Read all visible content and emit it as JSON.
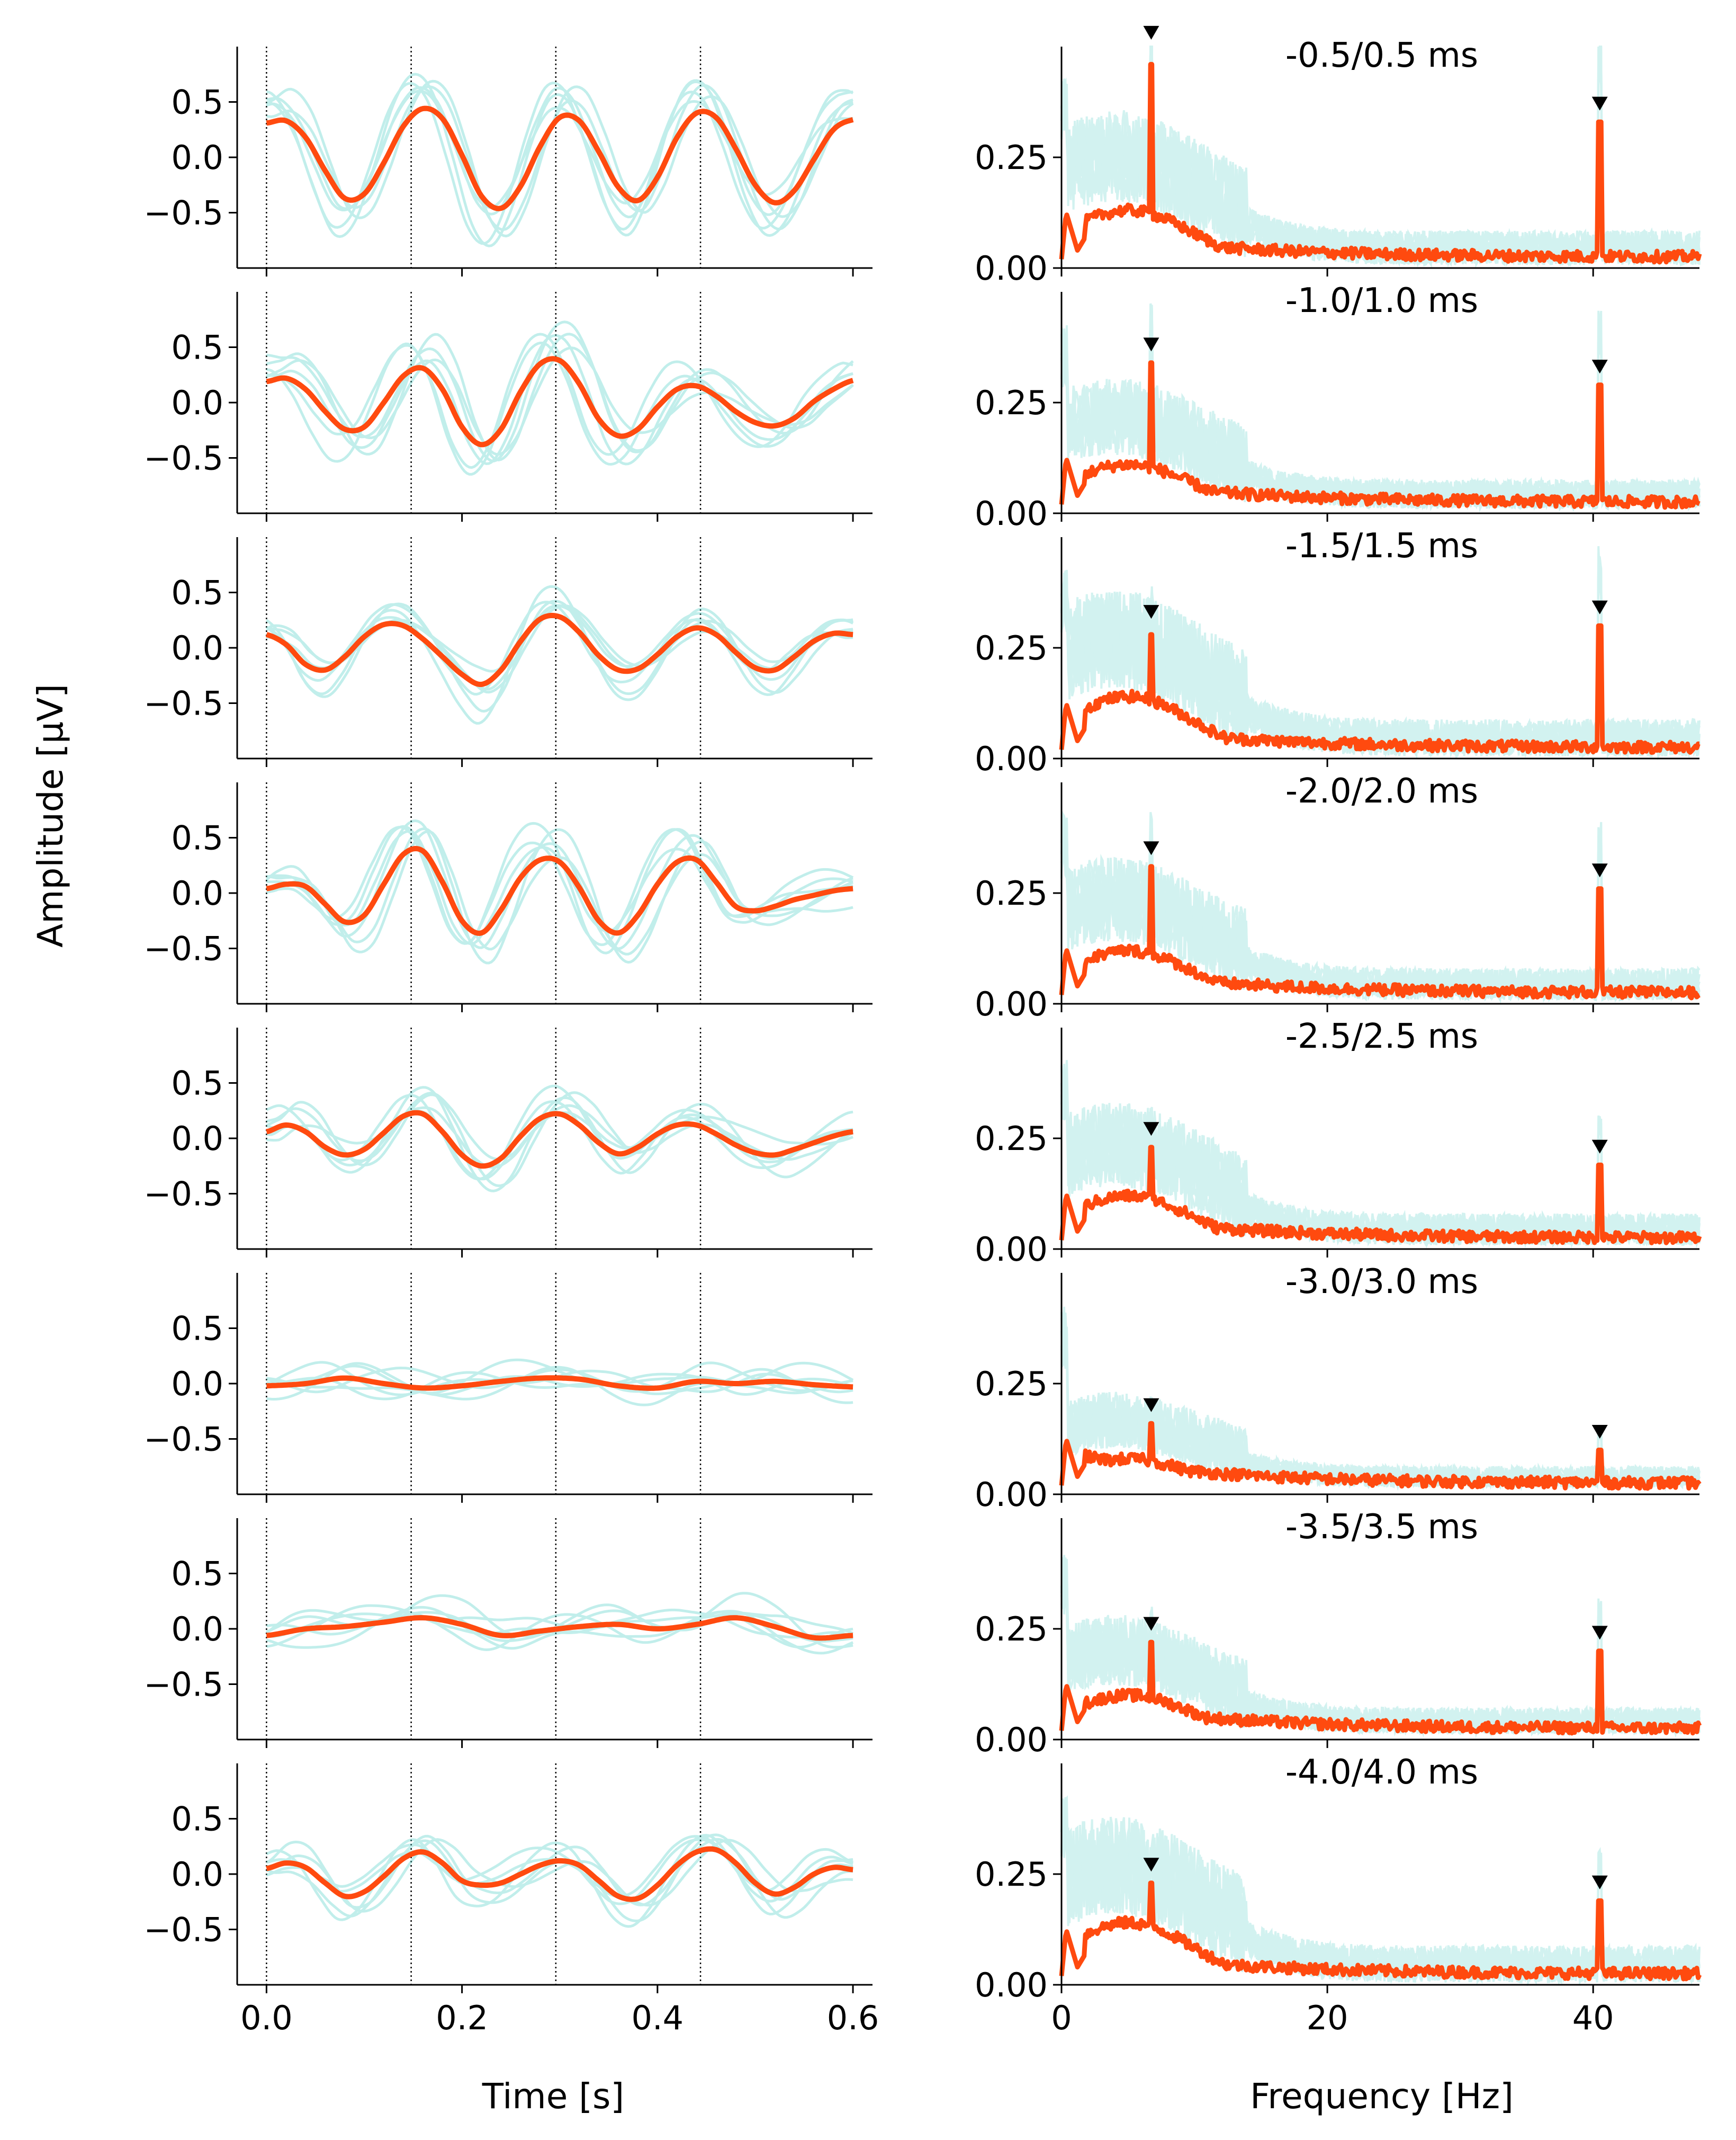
{
  "figure": {
    "left_ylabel": "Amplitude [μV]",
    "left_xlabel": "Time [s]",
    "right_xlabel": "Frequency [Hz]"
  },
  "colors": {
    "average_line": "#ff4a0f",
    "trial_lines": "#5fd3cc",
    "marker": "#000000",
    "stim_lines": "#000000",
    "axes": "#000000"
  },
  "chart_data": [
    {
      "type": "line",
      "panel": "time-domain waveforms",
      "xlabel": "Time [s]",
      "ylabel": "Amplitude [μV]",
      "xlim": [
        -0.03,
        0.62
      ],
      "ylim": [
        -1.0,
        1.0
      ],
      "x_ticks": [
        "0.0",
        "0.2",
        "0.4",
        "0.6"
      ],
      "x_tick_values": [
        0.0,
        0.2,
        0.4,
        0.6
      ],
      "y_ticks": [
        "0.5",
        "0.0",
        "−0.5"
      ],
      "y_tick_values": [
        0.5,
        0.0,
        -0.5
      ],
      "stimulus_onsets": [
        0.0,
        0.148,
        0.296,
        0.444
      ],
      "stimulus_line_style": "dotted",
      "rows": [
        {
          "offset_avg": 0.06,
          "offsets_trials": [
            0.05,
            -0.02,
            0.12,
            0.08,
            -0.06,
            0.03
          ],
          "peak_amp": 0.45,
          "x": [
            0.0,
            0.02,
            0.04,
            0.06,
            0.08,
            0.1,
            0.12,
            0.14,
            0.16,
            0.18,
            0.2,
            0.22,
            0.24,
            0.26,
            0.28,
            0.3,
            0.32,
            0.34,
            0.36,
            0.38,
            0.4,
            0.42,
            0.44,
            0.46,
            0.48,
            0.5,
            0.52,
            0.54,
            0.56,
            0.58,
            0.6
          ],
          "y": [
            0.31,
            0.33,
            0.18,
            -0.12,
            -0.37,
            -0.33,
            -0.05,
            0.28,
            0.44,
            0.35,
            0.02,
            -0.35,
            -0.46,
            -0.26,
            0.1,
            0.36,
            0.33,
            0.05,
            -0.27,
            -0.39,
            -0.18,
            0.18,
            0.4,
            0.36,
            0.08,
            -0.25,
            -0.41,
            -0.3,
            -0.02,
            0.25,
            0.34
          ]
        },
        {
          "offset_avg": 0.0,
          "offsets_trials": [
            0.02,
            0.1,
            -0.05,
            0.07,
            -0.09,
            0.04
          ],
          "peak_amp": 0.4,
          "x": [
            0.0,
            0.02,
            0.04,
            0.06,
            0.08,
            0.1,
            0.12,
            0.14,
            0.16,
            0.18,
            0.2,
            0.22,
            0.24,
            0.26,
            0.28,
            0.3,
            0.32,
            0.34,
            0.36,
            0.38,
            0.4,
            0.42,
            0.44,
            0.46,
            0.48,
            0.5,
            0.52,
            0.54,
            0.56,
            0.58,
            0.6
          ],
          "y": [
            0.19,
            0.22,
            0.12,
            -0.08,
            -0.24,
            -0.22,
            0.0,
            0.24,
            0.31,
            0.12,
            -0.22,
            -0.38,
            -0.24,
            0.1,
            0.35,
            0.38,
            0.17,
            -0.15,
            -0.3,
            -0.24,
            -0.04,
            0.12,
            0.15,
            0.06,
            -0.08,
            -0.18,
            -0.21,
            -0.14,
            0.01,
            0.12,
            0.2
          ]
        },
        {
          "offset_avg": 0.0,
          "offsets_trials": [
            0.04,
            -0.08,
            0.11,
            0.02,
            -0.05,
            0.09
          ],
          "peak_amp": 0.3,
          "x": [
            0.0,
            0.02,
            0.04,
            0.06,
            0.08,
            0.1,
            0.12,
            0.14,
            0.16,
            0.18,
            0.2,
            0.22,
            0.24,
            0.26,
            0.28,
            0.3,
            0.32,
            0.34,
            0.36,
            0.38,
            0.4,
            0.42,
            0.44,
            0.46,
            0.48,
            0.5,
            0.52,
            0.54,
            0.56,
            0.58,
            0.6
          ],
          "y": [
            0.12,
            0.03,
            -0.15,
            -0.2,
            -0.08,
            0.1,
            0.21,
            0.2,
            0.08,
            -0.08,
            -0.24,
            -0.33,
            -0.2,
            0.06,
            0.26,
            0.28,
            0.14,
            -0.07,
            -0.2,
            -0.19,
            -0.06,
            0.1,
            0.18,
            0.12,
            -0.04,
            -0.18,
            -0.2,
            -0.08,
            0.06,
            0.13,
            0.12
          ]
        },
        {
          "offset_avg": 0.0,
          "offsets_trials": [
            0.06,
            -0.03,
            0.13,
            -0.1,
            0.04,
            0.08
          ],
          "peak_amp": 0.4,
          "x": [
            0.0,
            0.02,
            0.04,
            0.06,
            0.08,
            0.1,
            0.12,
            0.14,
            0.16,
            0.18,
            0.2,
            0.22,
            0.24,
            0.26,
            0.28,
            0.3,
            0.32,
            0.34,
            0.36,
            0.38,
            0.4,
            0.42,
            0.44,
            0.46,
            0.48,
            0.5,
            0.52,
            0.54,
            0.56,
            0.58,
            0.6
          ],
          "y": [
            0.04,
            0.08,
            0.06,
            -0.1,
            -0.26,
            -0.2,
            0.08,
            0.35,
            0.38,
            0.1,
            -0.25,
            -0.36,
            -0.15,
            0.14,
            0.3,
            0.28,
            0.05,
            -0.25,
            -0.36,
            -0.2,
            0.08,
            0.28,
            0.3,
            0.1,
            -0.12,
            -0.16,
            -0.12,
            -0.06,
            -0.02,
            0.02,
            0.04
          ]
        },
        {
          "offset_avg": 0.0,
          "offsets_trials": [
            0.03,
            0.09,
            -0.06,
            0.12,
            -0.02,
            0.05
          ],
          "peak_amp": 0.25,
          "x": [
            0.0,
            0.02,
            0.04,
            0.06,
            0.08,
            0.1,
            0.12,
            0.14,
            0.16,
            0.18,
            0.2,
            0.22,
            0.24,
            0.26,
            0.28,
            0.3,
            0.32,
            0.34,
            0.36,
            0.38,
            0.4,
            0.42,
            0.44,
            0.46,
            0.48,
            0.5,
            0.52,
            0.54,
            0.56,
            0.58,
            0.6
          ],
          "y": [
            0.06,
            0.12,
            0.06,
            -0.08,
            -0.15,
            -0.1,
            0.05,
            0.2,
            0.22,
            0.06,
            -0.15,
            -0.25,
            -0.18,
            0.02,
            0.18,
            0.22,
            0.12,
            -0.04,
            -0.14,
            -0.08,
            0.04,
            0.12,
            0.12,
            0.04,
            -0.06,
            -0.13,
            -0.15,
            -0.1,
            -0.04,
            0.02,
            0.06
          ]
        },
        {
          "offset_avg": 0.0,
          "offsets_trials": [
            0.02,
            -0.07,
            0.1,
            -0.03,
            0.06,
            0.01
          ],
          "peak_amp": 0.08,
          "x": [
            0.0,
            0.04,
            0.08,
            0.12,
            0.16,
            0.2,
            0.24,
            0.28,
            0.32,
            0.36,
            0.4,
            0.44,
            0.48,
            0.52,
            0.56,
            0.6
          ],
          "y": [
            -0.02,
            0.0,
            0.05,
            0.0,
            -0.04,
            -0.02,
            0.02,
            0.05,
            0.04,
            -0.02,
            -0.04,
            0.02,
            0.0,
            0.02,
            -0.01,
            -0.03
          ]
        },
        {
          "offset_avg": 0.0,
          "offsets_trials": [
            0.05,
            -0.04,
            0.08,
            0.11,
            -0.08,
            0.03
          ],
          "peak_amp": 0.12,
          "x": [
            0.0,
            0.04,
            0.08,
            0.12,
            0.16,
            0.2,
            0.24,
            0.28,
            0.32,
            0.36,
            0.4,
            0.44,
            0.48,
            0.52,
            0.56,
            0.6
          ],
          "y": [
            -0.06,
            0.0,
            0.02,
            0.06,
            0.1,
            0.04,
            -0.06,
            -0.02,
            0.02,
            0.04,
            0.0,
            0.04,
            0.1,
            0.02,
            -0.08,
            -0.06
          ]
        },
        {
          "offset_avg": 0.0,
          "offsets_trials": [
            0.04,
            -0.06,
            0.09,
            0.0,
            -0.1,
            0.07
          ],
          "peak_amp": 0.22,
          "x": [
            0.0,
            0.02,
            0.04,
            0.06,
            0.08,
            0.1,
            0.12,
            0.14,
            0.16,
            0.18,
            0.2,
            0.22,
            0.24,
            0.26,
            0.28,
            0.3,
            0.32,
            0.34,
            0.36,
            0.38,
            0.4,
            0.42,
            0.44,
            0.46,
            0.48,
            0.5,
            0.52,
            0.54,
            0.56,
            0.58,
            0.6
          ],
          "y": [
            0.05,
            0.1,
            0.06,
            -0.08,
            -0.2,
            -0.16,
            -0.02,
            0.14,
            0.2,
            0.1,
            -0.06,
            -0.1,
            -0.08,
            0.0,
            0.08,
            0.12,
            0.08,
            -0.06,
            -0.2,
            -0.22,
            -0.1,
            0.08,
            0.2,
            0.22,
            0.1,
            -0.08,
            -0.18,
            -0.12,
            0.0,
            0.06,
            0.04
          ]
        }
      ]
    },
    {
      "type": "line",
      "panel": "frequency spectra",
      "xlabel": "Frequency [Hz]",
      "xlim": [
        0,
        48
      ],
      "ylim": [
        0.0,
        0.5
      ],
      "x_ticks": [
        "0",
        "20",
        "40"
      ],
      "x_tick_values": [
        0,
        20,
        40
      ],
      "y_ticks": [
        "0.25",
        "0.00"
      ],
      "y_tick_values": [
        0.25,
        0.0
      ],
      "peak_frequencies": [
        6.75,
        40.5
      ],
      "marker_symbol": "▼",
      "rows": [
        {
          "title": "-0.5/0.5 ms",
          "peak_low": 0.46,
          "peak_high": 0.33,
          "broad_level": 0.13,
          "marker_low": 0.53,
          "marker_high": 0.37
        },
        {
          "title": "-1.0/1.0 ms",
          "peak_low": 0.34,
          "peak_high": 0.29,
          "broad_level": 0.11,
          "marker_low": 0.38,
          "marker_high": 0.33
        },
        {
          "title": "-1.5/1.5 ms",
          "peak_low": 0.28,
          "peak_high": 0.3,
          "broad_level": 0.14,
          "marker_low": 0.33,
          "marker_high": 0.34
        },
        {
          "title": "-2.0/2.0 ms",
          "peak_low": 0.31,
          "peak_high": 0.26,
          "broad_level": 0.12,
          "marker_low": 0.35,
          "marker_high": 0.3
        },
        {
          "title": "-2.5/2.5 ms",
          "peak_low": 0.23,
          "peak_high": 0.19,
          "broad_level": 0.12,
          "marker_low": 0.27,
          "marker_high": 0.23
        },
        {
          "title": "-3.0/3.0 ms",
          "peak_low": 0.16,
          "peak_high": 0.1,
          "broad_level": 0.08,
          "marker_low": 0.2,
          "marker_high": 0.14
        },
        {
          "title": "-3.5/3.5 ms",
          "peak_low": 0.22,
          "peak_high": 0.2,
          "broad_level": 0.1,
          "marker_low": 0.26,
          "marker_high": 0.24
        },
        {
          "title": "-4.0/4.0 ms",
          "peak_low": 0.23,
          "peak_high": 0.19,
          "broad_level": 0.14,
          "marker_low": 0.27,
          "marker_high": 0.23
        }
      ]
    }
  ]
}
